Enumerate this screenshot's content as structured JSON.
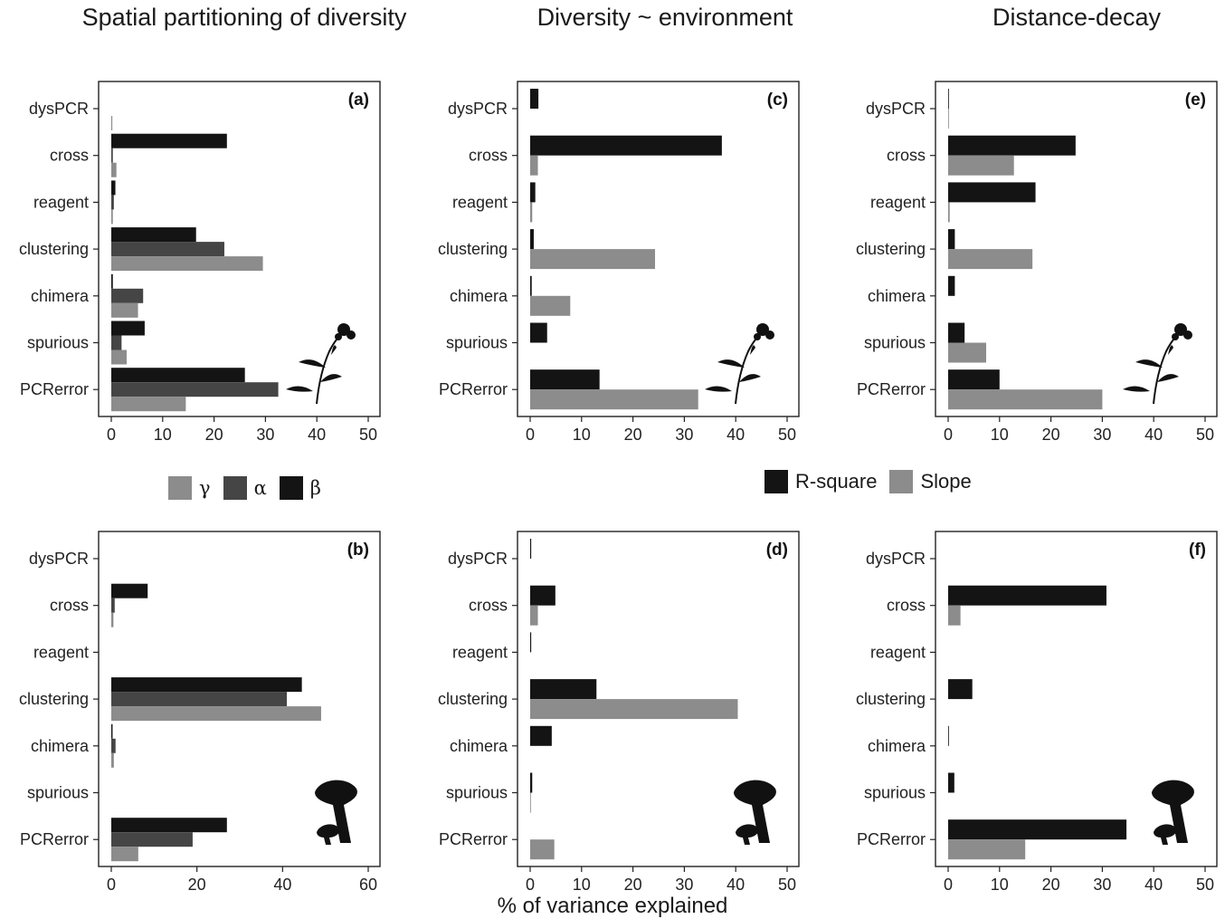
{
  "column_titles": [
    "Spatial partitioning of diversity",
    "Diversity ~ environment",
    "Distance-decay"
  ],
  "x_axis_label": "% of variance explained",
  "legend_diversity": [
    {
      "label": "γ",
      "color": "#8c8c8c"
    },
    {
      "label": "α",
      "color": "#454545"
    },
    {
      "label": "β",
      "color": "#141414"
    }
  ],
  "legend_regression": [
    {
      "label": "R-square",
      "color": "#141414"
    },
    {
      "label": "Slope",
      "color": "#8c8c8c"
    }
  ],
  "chart_data": [
    {
      "type": "bar",
      "panel": "(a)",
      "organism_icon": "plant-silhouette",
      "categories": [
        "dysPCR",
        "cross",
        "reagent",
        "clustering",
        "chimera",
        "spurious",
        "PCRerror"
      ],
      "xlim": [
        0,
        50
      ],
      "xticks": [
        0,
        10,
        20,
        30,
        40,
        50
      ],
      "series": [
        {
          "name": "β",
          "color": "#141414",
          "values": [
            0,
            22.5,
            0.8,
            16.5,
            0.3,
            6.5,
            26
          ]
        },
        {
          "name": "α",
          "color": "#454545",
          "values": [
            0,
            0.3,
            0.5,
            22,
            6.2,
            2.0,
            32.5
          ]
        },
        {
          "name": "γ",
          "color": "#8c8c8c",
          "values": [
            0.2,
            1.0,
            0.3,
            29.5,
            5.2,
            3.0,
            14.5
          ]
        }
      ]
    },
    {
      "type": "bar",
      "panel": "(b)",
      "organism_icon": "mushroom-silhouette",
      "categories": [
        "dysPCR",
        "cross",
        "reagent",
        "clustering",
        "chimera",
        "spurious",
        "PCRerror"
      ],
      "xlim": [
        0,
        60
      ],
      "xticks": [
        0,
        20,
        40,
        60
      ],
      "series": [
        {
          "name": "β",
          "color": "#141414",
          "values": [
            0,
            8.5,
            0,
            44.5,
            0.3,
            0,
            27
          ]
        },
        {
          "name": "α",
          "color": "#454545",
          "values": [
            0,
            0.8,
            0,
            41,
            1.0,
            0,
            19
          ]
        },
        {
          "name": "γ",
          "color": "#8c8c8c",
          "values": [
            0,
            0.5,
            0,
            49,
            0.6,
            0,
            6.3
          ]
        }
      ]
    },
    {
      "type": "bar",
      "panel": "(c)",
      "organism_icon": "plant-silhouette",
      "categories": [
        "dysPCR",
        "cross",
        "reagent",
        "clustering",
        "chimera",
        "spurious",
        "PCRerror"
      ],
      "xlim": [
        0,
        50
      ],
      "xticks": [
        0,
        10,
        20,
        30,
        40,
        50
      ],
      "series": [
        {
          "name": "R-square",
          "color": "#141414",
          "values": [
            1.6,
            37.3,
            1.0,
            0.7,
            0.3,
            3.3,
            13.5
          ]
        },
        {
          "name": "Slope",
          "color": "#8c8c8c",
          "values": [
            0,
            1.5,
            0.4,
            24.3,
            7.8,
            0,
            32.7
          ]
        }
      ]
    },
    {
      "type": "bar",
      "panel": "(d)",
      "organism_icon": "mushroom-silhouette",
      "categories": [
        "dysPCR",
        "cross",
        "reagent",
        "clustering",
        "chimera",
        "spurious",
        "PCRerror"
      ],
      "xlim": [
        0,
        50
      ],
      "xticks": [
        0,
        10,
        20,
        30,
        40,
        50
      ],
      "series": [
        {
          "name": "R-square",
          "color": "#141414",
          "values": [
            0.2,
            4.9,
            0.2,
            12.9,
            4.2,
            0.4,
            0
          ]
        },
        {
          "name": "Slope",
          "color": "#8c8c8c",
          "values": [
            0,
            1.5,
            0,
            40.4,
            0,
            0.1,
            4.7
          ]
        }
      ]
    },
    {
      "type": "bar",
      "panel": "(e)",
      "organism_icon": "plant-silhouette",
      "categories": [
        "dysPCR",
        "cross",
        "reagent",
        "clustering",
        "chimera",
        "spurious",
        "PCRerror"
      ],
      "xlim": [
        0,
        50
      ],
      "xticks": [
        0,
        10,
        20,
        30,
        40,
        50
      ],
      "series": [
        {
          "name": "R-square",
          "color": "#141414",
          "values": [
            0.1,
            24.8,
            17.0,
            1.3,
            1.3,
            3.2,
            10.0
          ]
        },
        {
          "name": "Slope",
          "color": "#8c8c8c",
          "values": [
            0.1,
            12.8,
            0.3,
            16.4,
            0,
            7.4,
            30.0
          ]
        }
      ]
    },
    {
      "type": "bar",
      "panel": "(f)",
      "organism_icon": "mushroom-silhouette",
      "categories": [
        "dysPCR",
        "cross",
        "reagent",
        "clustering",
        "chimera",
        "spurious",
        "PCRerror"
      ],
      "xlim": [
        0,
        50
      ],
      "xticks": [
        0,
        10,
        20,
        30,
        40,
        50
      ],
      "series": [
        {
          "name": "R-square",
          "color": "#141414",
          "values": [
            0,
            30.8,
            0,
            4.7,
            0.1,
            1.2,
            34.7
          ]
        },
        {
          "name": "Slope",
          "color": "#8c8c8c",
          "values": [
            0,
            2.4,
            0,
            0,
            0,
            0,
            15.0
          ]
        }
      ]
    }
  ]
}
